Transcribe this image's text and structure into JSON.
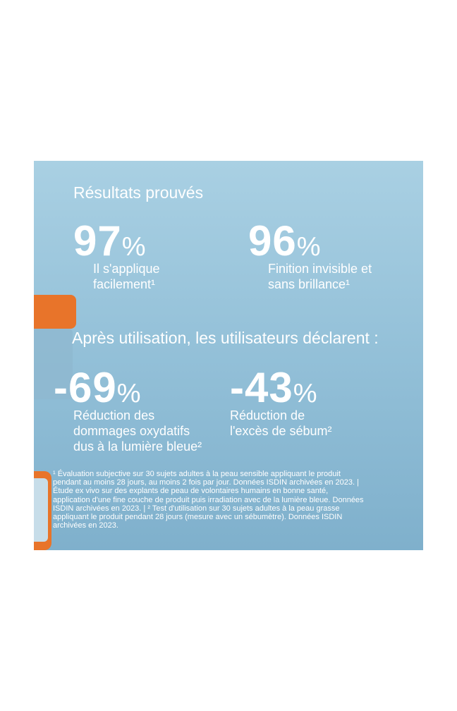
{
  "heading": "Résultats prouvés",
  "stats_top": [
    {
      "number": "97",
      "unit": "%",
      "lines": [
        "Il s'applique",
        "facilement¹"
      ]
    },
    {
      "number": "96",
      "unit": "%",
      "lines": [
        "Finition invisible et",
        "sans brillance¹"
      ]
    }
  ],
  "subheading": "Après utilisation, les utilisateurs déclarent :",
  "stats_bottom": [
    {
      "number": "-69",
      "unit": "%",
      "lines": [
        "Réduction des",
        "dommages oxydatifs",
        "dus à la lumière bleue²"
      ]
    },
    {
      "number": "-43",
      "unit": "%",
      "lines": [
        "Réduction de",
        "l'excès de sébum²"
      ]
    }
  ],
  "footnote": [
    "¹ Évaluation subjective sur 30 sujets adultes à la peau sensible appliquant le produit",
    "pendant au moins 28 jours, au moins 2 fois par jour. Données ISDIN archivées en 2023. |",
    "Étude ex vivo sur des explants de peau de volontaires humains en bonne santé,",
    "application d'une fine couche de produit puis irradiation avec de la lumière bleue. Données",
    "ISDIN archivées en 2023. | ² Test d'utilisation sur 30 sujets adultes à la peau grasse",
    "appliquant le produit pendant 28 jours (mesure avec un sébumètre). Données ISDIN",
    "archivées en 2023."
  ]
}
